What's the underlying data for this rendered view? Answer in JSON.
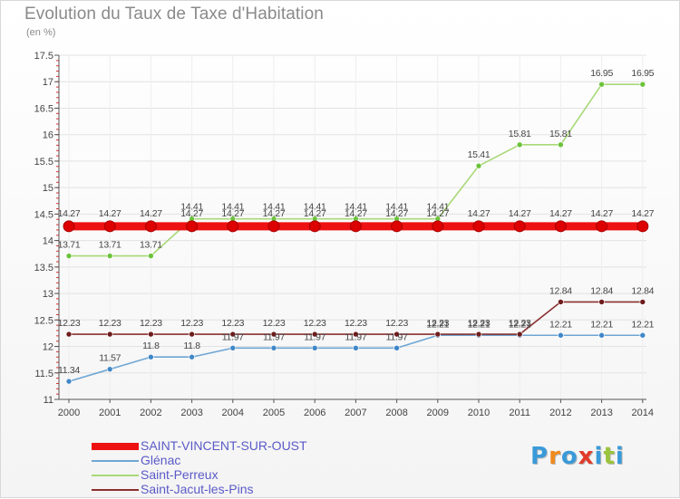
{
  "header": {
    "title": "Evolution du Taux de Taxe d'Habitation",
    "subtitle": "(en %)"
  },
  "logo": {
    "text": "Proxiti",
    "letters": [
      "P",
      "r",
      "o",
      "x",
      "i",
      "t",
      "i"
    ],
    "colors": [
      "#3a9ad9",
      "#f08a1c",
      "#3a9ad9",
      "#e23b2a",
      "#3a9ad9",
      "#9ac43c",
      "#3a9ad9"
    ]
  },
  "chart_data": {
    "type": "line",
    "title": "Evolution du Taux de Taxe d'Habitation",
    "ylabel": "(en %)",
    "xlabel": "",
    "x": [
      "2000",
      "2001",
      "2002",
      "2003",
      "2004",
      "2005",
      "2006",
      "2007",
      "2008",
      "2009",
      "2010",
      "2011",
      "2012",
      "2013",
      "2014"
    ],
    "ylim": [
      11,
      17.5
    ],
    "yticks": [
      11,
      11.5,
      12,
      12.5,
      13,
      13.5,
      14,
      14.5,
      15,
      15.5,
      16,
      16.5,
      17,
      17.5
    ],
    "ytick_labels": [
      "11",
      "11.5",
      "12",
      "12.5",
      "13",
      "13.5",
      "14",
      "14.5",
      "15",
      "15.5",
      "16",
      "16.5",
      "17",
      "17.5"
    ],
    "grid": "horizontal",
    "legend_position": "bottom-left",
    "series": [
      {
        "name": "SAINT-VINCENT-SUR-OUST",
        "color": "#ee1111",
        "marker_color": "#dd0000",
        "values": [
          14.27,
          14.27,
          14.27,
          14.27,
          14.27,
          14.27,
          14.27,
          14.27,
          14.27,
          14.27,
          14.27,
          14.27,
          14.27,
          14.27,
          14.27
        ],
        "labels": [
          "14.27",
          "14.27",
          "14.27",
          "14.27",
          "14.27",
          "14.27",
          "14.27",
          "14.27",
          "14.27",
          "14.27",
          "14.27",
          "14.27",
          "14.27",
          "14.27",
          "14.27"
        ]
      },
      {
        "name": "Glénac",
        "color": "#6ea6d4",
        "marker_color": "#3f87c8",
        "values": [
          11.34,
          11.57,
          11.8,
          11.8,
          11.97,
          11.97,
          11.97,
          11.97,
          11.97,
          12.21,
          12.21,
          12.21,
          12.21,
          12.21,
          12.21
        ],
        "labels": [
          "11.34",
          "11.57",
          "11.8",
          "11.8",
          "11.97",
          "11.97",
          "11.97",
          "11.97",
          "11.97",
          "12.21",
          "12.21",
          "12.21",
          "12.21",
          "12.21",
          "12.21"
        ]
      },
      {
        "name": "Saint-Perreux",
        "color": "#a8d878",
        "marker_color": "#6cc23a",
        "values": [
          13.71,
          13.71,
          13.71,
          14.41,
          14.41,
          14.41,
          14.41,
          14.41,
          14.41,
          14.41,
          15.41,
          15.81,
          15.81,
          16.95,
          16.95
        ],
        "labels": [
          "13.71",
          "13.71",
          "13.71",
          "14.41",
          "14.41",
          "14.41",
          "14.41",
          "14.41",
          "14.41",
          "14.41",
          "15.41",
          "15.81",
          "15.81",
          "16.95",
          "16.95"
        ]
      },
      {
        "name": "Saint-Jacut-les-Pins",
        "color": "#8a3030",
        "marker_color": "#6e1c1c",
        "values": [
          12.23,
          12.23,
          12.23,
          12.23,
          12.23,
          12.23,
          12.23,
          12.23,
          12.23,
          12.23,
          12.23,
          12.23,
          12.84,
          12.84,
          12.84
        ],
        "labels": [
          "12.23",
          "12.23",
          "12.23",
          "12.23",
          "12.23",
          "12.23",
          "12.23",
          "12.23",
          "12.23",
          "12.23",
          "12.23",
          "12.23",
          "12.84",
          "12.84",
          "12.84"
        ]
      }
    ]
  }
}
